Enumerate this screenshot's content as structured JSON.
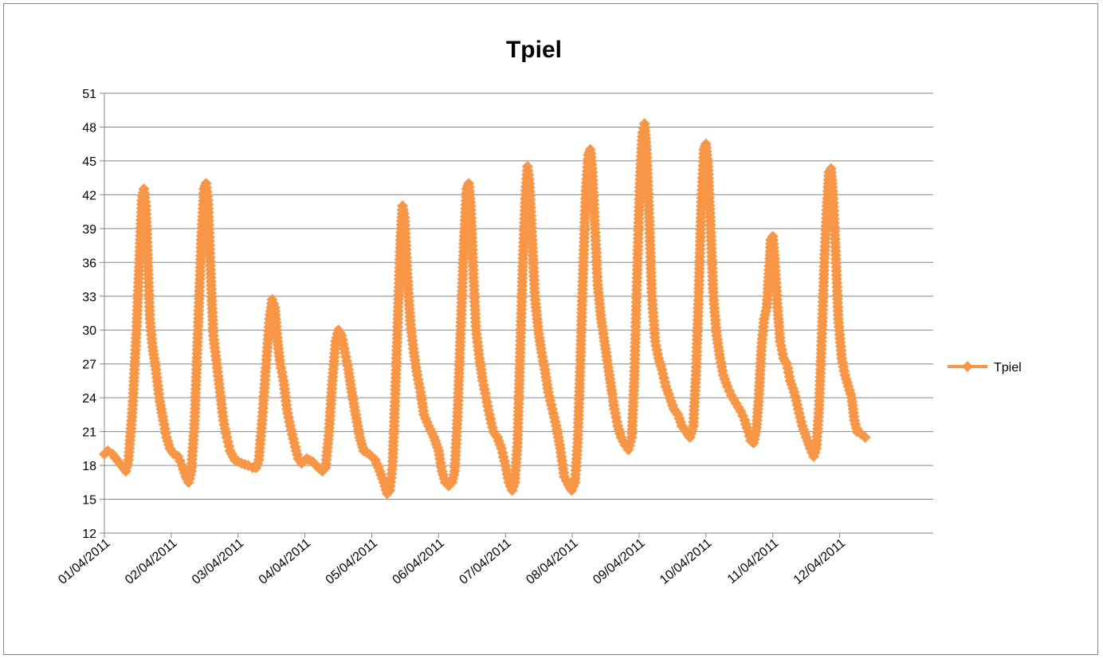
{
  "chart_data": {
    "type": "line",
    "title": "Tpiel",
    "xlabel": "",
    "ylabel": "",
    "ylim": [
      12,
      51
    ],
    "yticks": [
      12,
      15,
      18,
      21,
      24,
      27,
      30,
      33,
      36,
      39,
      42,
      45,
      48,
      51
    ],
    "xlim": [
      1,
      13.4
    ],
    "xticks": [
      {
        "x": 1,
        "label": "01/04/2011"
      },
      {
        "x": 2,
        "label": "02/04/2011"
      },
      {
        "x": 3,
        "label": "03/04/2011"
      },
      {
        "x": 4,
        "label": "04/04/2011"
      },
      {
        "x": 5,
        "label": "05/04/2011"
      },
      {
        "x": 6,
        "label": "06/04/2011"
      },
      {
        "x": 7,
        "label": "07/04/2011"
      },
      {
        "x": 8,
        "label": "08/04/2011"
      },
      {
        "x": 9,
        "label": "09/04/2011"
      },
      {
        "x": 10,
        "label": "10/04/2011"
      },
      {
        "x": 11,
        "label": "11/04/2011"
      },
      {
        "x": 12,
        "label": "12/04/2011"
      }
    ],
    "grid": "horizontal",
    "legend_position": "right",
    "series": [
      {
        "name": "Tpiel",
        "color": "#f79646",
        "marker": "diamond",
        "points": [
          [
            1.0,
            19.0
          ],
          [
            1.05,
            19.3
          ],
          [
            1.12,
            19.0
          ],
          [
            1.2,
            18.4
          ],
          [
            1.28,
            17.8
          ],
          [
            1.32,
            17.5
          ],
          [
            1.36,
            18.5
          ],
          [
            1.42,
            23.0
          ],
          [
            1.48,
            30.0
          ],
          [
            1.53,
            37.0
          ],
          [
            1.56,
            41.5
          ],
          [
            1.59,
            42.5
          ],
          [
            1.62,
            41.0
          ],
          [
            1.65,
            36.0
          ],
          [
            1.68,
            31.0
          ],
          [
            1.72,
            28.5
          ],
          [
            1.77,
            26.5
          ],
          [
            1.82,
            24.0
          ],
          [
            1.88,
            22.0
          ],
          [
            1.93,
            20.5
          ],
          [
            1.98,
            19.5
          ],
          [
            2.04,
            19.0
          ],
          [
            2.1,
            18.8
          ],
          [
            2.16,
            18.0
          ],
          [
            2.22,
            17.0
          ],
          [
            2.26,
            16.5
          ],
          [
            2.3,
            17.5
          ],
          [
            2.35,
            22.0
          ],
          [
            2.4,
            30.0
          ],
          [
            2.45,
            38.0
          ],
          [
            2.49,
            42.5
          ],
          [
            2.52,
            43.0
          ],
          [
            2.55,
            41.5
          ],
          [
            2.59,
            35.0
          ],
          [
            2.63,
            29.5
          ],
          [
            2.68,
            27.0
          ],
          [
            2.73,
            24.5
          ],
          [
            2.78,
            22.0
          ],
          [
            2.83,
            20.5
          ],
          [
            2.88,
            19.3
          ],
          [
            2.95,
            18.5
          ],
          [
            3.05,
            18.2
          ],
          [
            3.15,
            18.0
          ],
          [
            3.22,
            17.8
          ],
          [
            3.27,
            17.8
          ],
          [
            3.31,
            18.5
          ],
          [
            3.36,
            22.0
          ],
          [
            3.42,
            27.0
          ],
          [
            3.47,
            31.0
          ],
          [
            3.51,
            32.7
          ],
          [
            3.55,
            32.0
          ],
          [
            3.59,
            29.0
          ],
          [
            3.63,
            27.0
          ],
          [
            3.68,
            25.5
          ],
          [
            3.73,
            23.0
          ],
          [
            3.78,
            21.5
          ],
          [
            3.84,
            20.0
          ],
          [
            3.9,
            18.6
          ],
          [
            3.95,
            18.2
          ],
          [
            4.03,
            18.6
          ],
          [
            4.12,
            18.3
          ],
          [
            4.2,
            17.8
          ],
          [
            4.26,
            17.5
          ],
          [
            4.31,
            17.8
          ],
          [
            4.36,
            21.0
          ],
          [
            4.41,
            25.5
          ],
          [
            4.46,
            29.0
          ],
          [
            4.5,
            30.0
          ],
          [
            4.55,
            29.5
          ],
          [
            4.6,
            28.0
          ],
          [
            4.65,
            26.5
          ],
          [
            4.7,
            24.5
          ],
          [
            4.76,
            22.5
          ],
          [
            4.82,
            20.5
          ],
          [
            4.88,
            19.3
          ],
          [
            4.96,
            19.0
          ],
          [
            5.05,
            18.5
          ],
          [
            5.12,
            17.5
          ],
          [
            5.18,
            16.5
          ],
          [
            5.23,
            15.5
          ],
          [
            5.27,
            15.8
          ],
          [
            5.31,
            18.0
          ],
          [
            5.35,
            24.0
          ],
          [
            5.39,
            31.0
          ],
          [
            5.43,
            38.0
          ],
          [
            5.46,
            41.0
          ],
          [
            5.49,
            40.0
          ],
          [
            5.53,
            35.0
          ],
          [
            5.58,
            30.5
          ],
          [
            5.63,
            28.0
          ],
          [
            5.68,
            26.0
          ],
          [
            5.73,
            24.5
          ],
          [
            5.78,
            22.5
          ],
          [
            5.85,
            21.5
          ],
          [
            5.93,
            20.5
          ],
          [
            6.0,
            19.3
          ],
          [
            6.05,
            17.5
          ],
          [
            6.1,
            16.5
          ],
          [
            6.15,
            16.2
          ],
          [
            6.2,
            16.5
          ],
          [
            6.24,
            17.5
          ],
          [
            6.28,
            22.0
          ],
          [
            6.33,
            30.0
          ],
          [
            6.38,
            38.0
          ],
          [
            6.42,
            42.5
          ],
          [
            6.45,
            43.0
          ],
          [
            6.48,
            41.0
          ],
          [
            6.52,
            35.0
          ],
          [
            6.56,
            30.0
          ],
          [
            6.61,
            27.5
          ],
          [
            6.66,
            25.5
          ],
          [
            6.71,
            24.0
          ],
          [
            6.76,
            22.5
          ],
          [
            6.82,
            21.0
          ],
          [
            6.88,
            20.5
          ],
          [
            6.94,
            19.5
          ],
          [
            7.0,
            18.0
          ],
          [
            7.05,
            16.5
          ],
          [
            7.1,
            15.8
          ],
          [
            7.14,
            16.5
          ],
          [
            7.18,
            20.0
          ],
          [
            7.22,
            28.0
          ],
          [
            7.26,
            36.0
          ],
          [
            7.3,
            42.0
          ],
          [
            7.33,
            44.5
          ],
          [
            7.36,
            43.0
          ],
          [
            7.4,
            38.0
          ],
          [
            7.44,
            33.0
          ],
          [
            7.49,
            30.0
          ],
          [
            7.54,
            28.0
          ],
          [
            7.59,
            26.5
          ],
          [
            7.64,
            24.5
          ],
          [
            7.7,
            23.0
          ],
          [
            7.76,
            21.5
          ],
          [
            7.82,
            19.5
          ],
          [
            7.88,
            17.0
          ],
          [
            7.94,
            16.3
          ],
          [
            7.99,
            15.8
          ],
          [
            8.04,
            16.5
          ],
          [
            8.08,
            20.0
          ],
          [
            8.12,
            27.0
          ],
          [
            8.16,
            35.0
          ],
          [
            8.2,
            42.0
          ],
          [
            8.24,
            45.5
          ],
          [
            8.27,
            46.0
          ],
          [
            8.3,
            44.0
          ],
          [
            8.34,
            39.0
          ],
          [
            8.38,
            34.0
          ],
          [
            8.43,
            31.0
          ],
          [
            8.48,
            29.0
          ],
          [
            8.53,
            27.0
          ],
          [
            8.58,
            25.0
          ],
          [
            8.63,
            23.0
          ],
          [
            8.68,
            21.5
          ],
          [
            8.73,
            20.5
          ],
          [
            8.79,
            19.8
          ],
          [
            8.84,
            19.4
          ],
          [
            8.89,
            20.5
          ],
          [
            8.93,
            26.0
          ],
          [
            8.97,
            35.0
          ],
          [
            9.01,
            43.0
          ],
          [
            9.05,
            47.5
          ],
          [
            9.08,
            48.3
          ],
          [
            9.11,
            46.0
          ],
          [
            9.15,
            40.0
          ],
          [
            9.19,
            33.0
          ],
          [
            9.24,
            29.0
          ],
          [
            9.29,
            27.5
          ],
          [
            9.34,
            26.5
          ],
          [
            9.4,
            25.0
          ],
          [
            9.46,
            24.0
          ],
          [
            9.52,
            23.0
          ],
          [
            9.58,
            22.5
          ],
          [
            9.64,
            21.5
          ],
          [
            9.7,
            21.0
          ],
          [
            9.76,
            20.5
          ],
          [
            9.81,
            21.5
          ],
          [
            9.85,
            26.0
          ],
          [
            9.89,
            33.0
          ],
          [
            9.93,
            41.0
          ],
          [
            9.97,
            46.0
          ],
          [
            10.0,
            46.5
          ],
          [
            10.03,
            44.5
          ],
          [
            10.07,
            39.0
          ],
          [
            10.11,
            33.0
          ],
          [
            10.16,
            29.5
          ],
          [
            10.21,
            27.5
          ],
          [
            10.26,
            26.0
          ],
          [
            10.32,
            25.0
          ],
          [
            10.38,
            24.2
          ],
          [
            10.45,
            23.5
          ],
          [
            10.52,
            22.8
          ],
          [
            10.58,
            22.0
          ],
          [
            10.63,
            21.0
          ],
          [
            10.67,
            20.2
          ],
          [
            10.71,
            20.0
          ],
          [
            10.75,
            21.0
          ],
          [
            10.79,
            24.0
          ],
          [
            10.83,
            28.5
          ],
          [
            10.87,
            31.0
          ],
          [
            10.91,
            32.0
          ],
          [
            10.94,
            35.0
          ],
          [
            10.97,
            38.0
          ],
          [
            11.0,
            38.3
          ],
          [
            11.03,
            36.0
          ],
          [
            11.07,
            32.0
          ],
          [
            11.11,
            29.0
          ],
          [
            11.16,
            27.5
          ],
          [
            11.21,
            27.0
          ],
          [
            11.26,
            25.5
          ],
          [
            11.32,
            24.5
          ],
          [
            11.38,
            23.0
          ],
          [
            11.44,
            21.5
          ],
          [
            11.5,
            20.5
          ],
          [
            11.56,
            19.5
          ],
          [
            11.61,
            18.8
          ],
          [
            11.65,
            19.5
          ],
          [
            11.69,
            23.0
          ],
          [
            11.73,
            29.0
          ],
          [
            11.77,
            36.0
          ],
          [
            11.81,
            41.0
          ],
          [
            11.84,
            44.0
          ],
          [
            11.87,
            44.3
          ],
          [
            11.9,
            42.0
          ],
          [
            11.94,
            37.0
          ],
          [
            11.98,
            31.0
          ],
          [
            12.03,
            27.5
          ],
          [
            12.08,
            26.0
          ],
          [
            12.13,
            25.0
          ],
          [
            12.18,
            24.0
          ],
          [
            12.22,
            22.0
          ],
          [
            12.26,
            21.0
          ],
          [
            12.32,
            20.8
          ],
          [
            12.38,
            20.5
          ]
        ]
      }
    ]
  }
}
